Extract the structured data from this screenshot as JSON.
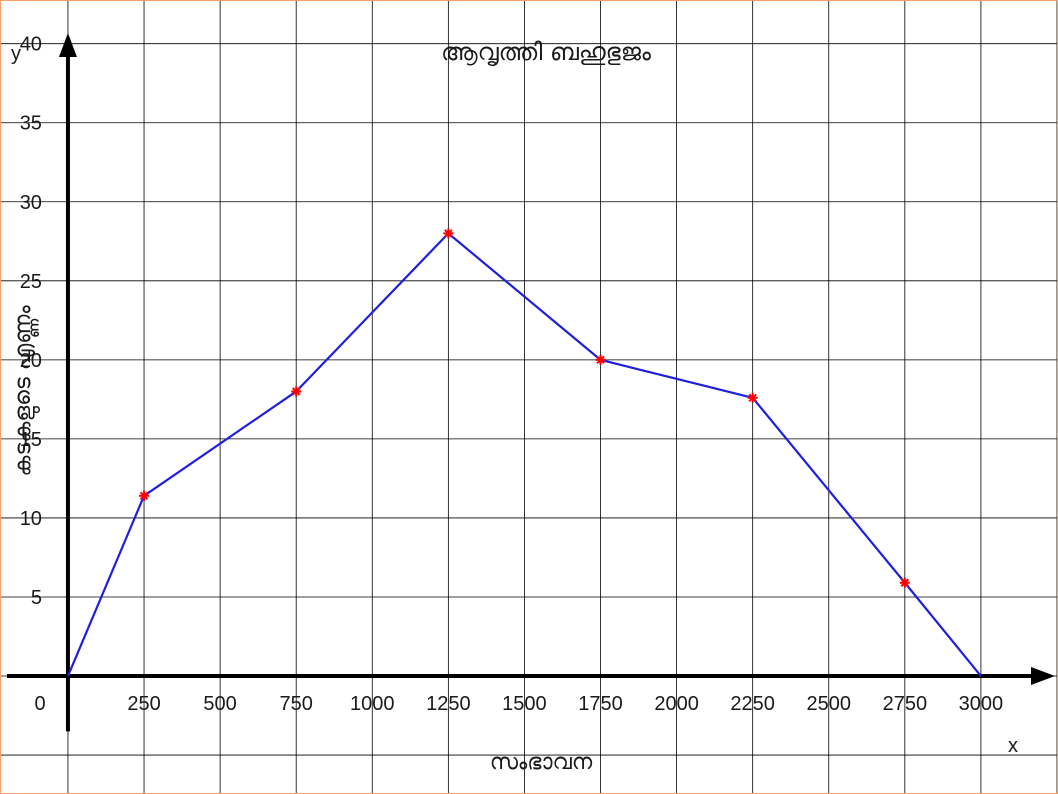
{
  "chart_data": {
    "type": "line",
    "title": "ആവൃത്തി ബഹുഭുജം",
    "xlabel": "സംഭാവന",
    "ylabel": "കടകളുടെ എണ്ണം",
    "x_axis_letter": "x",
    "y_axis_letter": "y",
    "origin_label": "0",
    "x_tick_labels": [
      "250",
      "500",
      "750",
      "1000",
      "1250",
      "1500",
      "1750",
      "2000",
      "2250",
      "2500",
      "2750",
      "3000"
    ],
    "y_tick_labels": [
      "5",
      "10",
      "15",
      "20",
      "25",
      "30",
      "35",
      "40"
    ],
    "xlim": [
      -220,
      3250
    ],
    "ylim": [
      -7.4,
      42.7
    ],
    "grid": true,
    "line_color": "#1f1fe0",
    "marker_color": "#ff0000",
    "series": [
      {
        "x": [
          0,
          250,
          750,
          1250,
          1750,
          2250,
          2750,
          3000
        ],
        "y": [
          0,
          11.4,
          18,
          28,
          20,
          17.6,
          5.9,
          0
        ]
      }
    ]
  }
}
